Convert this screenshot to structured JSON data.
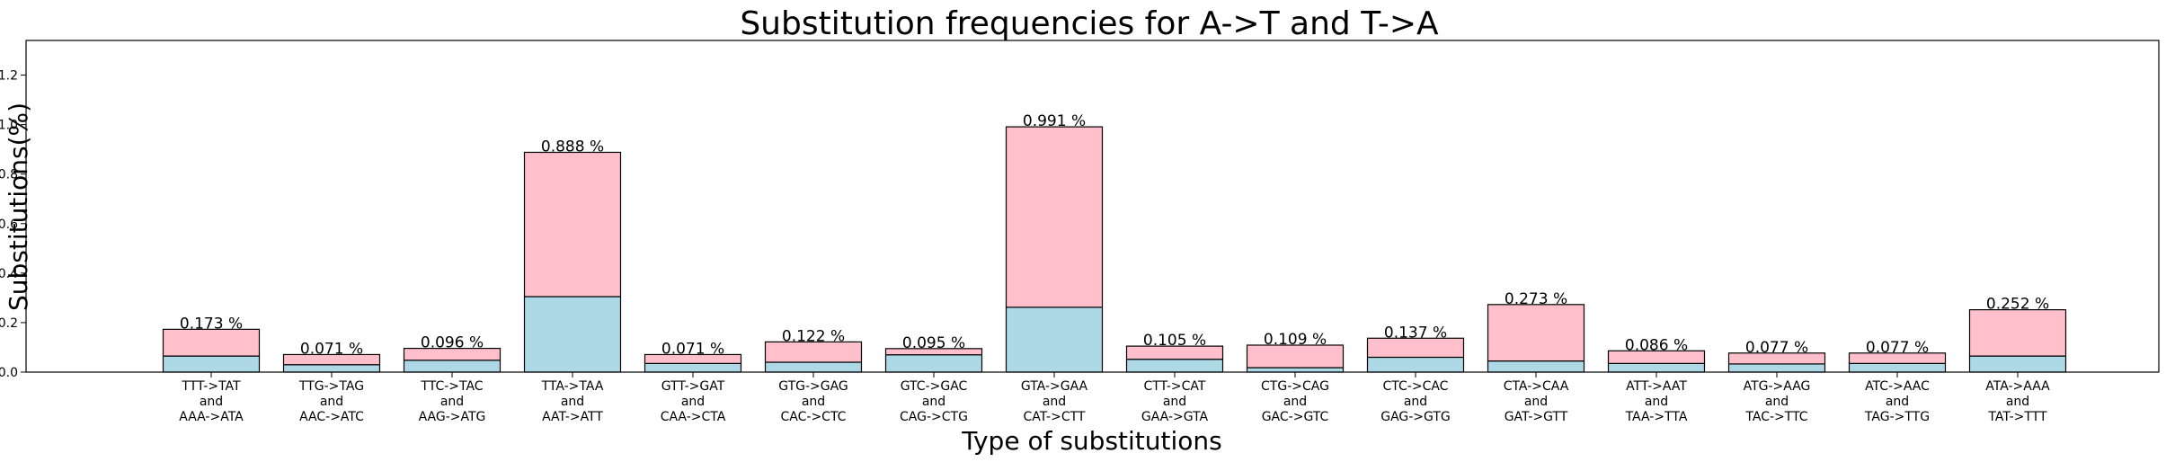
{
  "chart_data": {
    "type": "bar",
    "stacked": true,
    "title": "Substitution frequencies for A->T and T->A",
    "xlabel": "Type of substitutions",
    "ylabel": "Substitutions(%)",
    "ylim": [
      0,
      1.34
    ],
    "yticks": [
      "0.0",
      "0.2",
      "0.4",
      "0.6",
      "0.8",
      "1.0",
      "1.2"
    ],
    "ytick_values": [
      0,
      0.2,
      0.4,
      0.6,
      0.8,
      1.0,
      1.2
    ],
    "grid": false,
    "categories": [
      [
        "TTT->TAT",
        "and",
        "AAA->ATA"
      ],
      [
        "TTG->TAG",
        "and",
        "AAC->ATC"
      ],
      [
        "TTC->TAC",
        "and",
        "AAG->ATG"
      ],
      [
        "TTA->TAA",
        "and",
        "AAT->ATT"
      ],
      [
        "GTT->GAT",
        "and",
        "CAA->CTA"
      ],
      [
        "GTG->GAG",
        "and",
        "CAC->CTC"
      ],
      [
        "GTC->GAC",
        "and",
        "CAG->CTG"
      ],
      [
        "GTA->GAA",
        "and",
        "CAT->CTT"
      ],
      [
        "CTT->CAT",
        "and",
        "GAA->GTA"
      ],
      [
        "CTG->CAG",
        "and",
        "GAC->GTC"
      ],
      [
        "CTC->CAC",
        "and",
        "GAG->GTG"
      ],
      [
        "CTA->CAA",
        "and",
        "GAT->GTT"
      ],
      [
        "ATT->AAT",
        "and",
        "TAA->TTA"
      ],
      [
        "ATG->AAG",
        "and",
        "TAC->TTC"
      ],
      [
        "ATC->AAC",
        "and",
        "TAG->TTG"
      ],
      [
        "ATA->AAA",
        "and",
        "TAT->TTT"
      ]
    ],
    "series": [
      {
        "color": "#add8e6",
        "values": [
          0.065,
          0.03,
          0.048,
          0.305,
          0.035,
          0.04,
          0.07,
          0.262,
          0.052,
          0.018,
          0.06,
          0.045,
          0.035,
          0.033,
          0.035,
          0.065
        ]
      },
      {
        "color": "#ffc0cb",
        "values": [
          0.108,
          0.041,
          0.048,
          0.583,
          0.036,
          0.082,
          0.025,
          0.729,
          0.053,
          0.091,
          0.077,
          0.228,
          0.051,
          0.044,
          0.042,
          0.187
        ]
      }
    ],
    "totals": [
      0.173,
      0.071,
      0.096,
      0.888,
      0.071,
      0.122,
      0.095,
      0.991,
      0.105,
      0.109,
      0.137,
      0.273,
      0.086,
      0.077,
      0.077,
      0.252
    ],
    "data_labels": [
      "0.173 %",
      "0.071 %",
      "0.096 %",
      "0.888 %",
      "0.071 %",
      "0.122 %",
      "0.095 %",
      "0.991 %",
      "0.105 %",
      "0.109 %",
      "0.137 %",
      "0.273 %",
      "0.086 %",
      "0.077 %",
      "0.077 %",
      "0.252 %"
    ]
  }
}
